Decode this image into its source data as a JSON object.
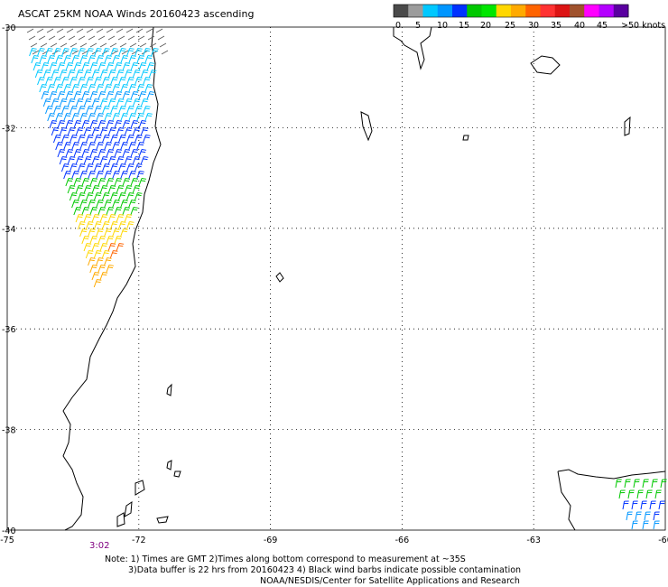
{
  "title": "ASCAT 25KM NOAA Winds 20160423 ascending",
  "legend": {
    "tick_labels": [
      "0",
      "5",
      "10",
      "15",
      "20",
      "25",
      "30",
      "35",
      "40",
      "45",
      ">50 knots"
    ],
    "colors": [
      "#4a4a4a",
      "#9c9c9c",
      "#00c8ff",
      "#0096ff",
      "#0032ff",
      "#00c800",
      "#00e600",
      "#ffd700",
      "#ffaa00",
      "#ff6400",
      "#ff3232",
      "#dc1414",
      "#a0522d",
      "#ff00ff",
      "#b400ff",
      "#5a00a0"
    ]
  },
  "map": {
    "lon_labels": [
      "-75",
      "-72",
      "-69",
      "-66",
      "-63",
      "-60"
    ],
    "lat_labels": [
      "-30",
      "-32",
      "-34",
      "-36",
      "-38",
      "-40"
    ],
    "lon_range": [
      -75,
      -60
    ],
    "lat_range": [
      -40,
      -30
    ],
    "grid": "dotted",
    "time_label": "3:02"
  },
  "notes": {
    "line1": "Note: 1) Times are GMT 2)Times along bottom correspond to measurement at ~35S",
    "line2": "3)Data buffer is 22 hrs from 20160423 4) Black wind barbs indicate possible contamination",
    "line3": "NOAA/NESDIS/Center for Satellite Applications and Research"
  }
}
